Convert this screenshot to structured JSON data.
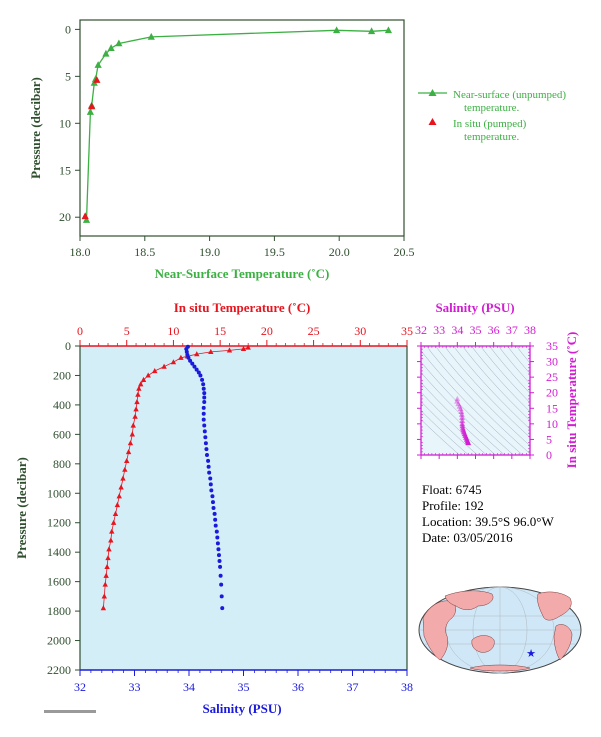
{
  "colors": {
    "near_surface": "#3cb043",
    "in_situ_red": "#e8141e",
    "salinity_blue": "#1a1adc",
    "magenta": "#d21ed2",
    "axis_dark": "#2f4f2f",
    "plot_bg": "#d4eef8",
    "land": "#f2aaaa",
    "ocean": "#cfe7f6"
  },
  "info": {
    "float": "Float:  6745",
    "profile": "Profile:  192",
    "location": "Location:  39.5°S  96.0°W",
    "date": "Date:  03/05/2016"
  },
  "chart_data": [
    {
      "type": "line",
      "xlabel": "Near-Surface Temperature (˚C)",
      "ylabel": "Pressure (decibar)",
      "xlim": [
        18.0,
        20.5
      ],
      "ylim": [
        22,
        -1
      ],
      "xticks": [
        "18.0",
        "18.5",
        "19.0",
        "19.5",
        "20.0",
        "20.5"
      ],
      "yticks": [
        "0",
        "5",
        "10",
        "15",
        "20"
      ],
      "legend": {
        "placement": "right"
      },
      "series": [
        {
          "name": "Near-surface (unpumped) temperature.",
          "color": "#3cb043",
          "points": [
            [
              20.38,
              0.1
            ],
            [
              20.25,
              0.2
            ],
            [
              19.98,
              0.1
            ],
            [
              18.55,
              0.8
            ],
            [
              18.3,
              1.5
            ],
            [
              18.24,
              2.0
            ],
            [
              18.2,
              2.6
            ],
            [
              18.14,
              3.8
            ],
            [
              18.12,
              5.3
            ],
            [
              18.11,
              5.7
            ],
            [
              18.09,
              8.1
            ],
            [
              18.08,
              8.8
            ],
            [
              18.05,
              20.3
            ]
          ]
        },
        {
          "name": "In situ (pumped) temperature.",
          "color": "#e8141e",
          "points": [
            [
              18.13,
              5.4
            ],
            [
              18.09,
              8.2
            ],
            [
              18.04,
              19.9
            ]
          ]
        }
      ]
    },
    {
      "type": "scatter",
      "x_top_label": "In situ Temperature (˚C)",
      "x_bottom_label": "Salinity (PSU)",
      "ylabel": "Pressure (decibar)",
      "top_lim": [
        0,
        35
      ],
      "top_ticks": [
        "0",
        "5",
        "10",
        "15",
        "20",
        "25",
        "30",
        "35"
      ],
      "bottom_lim": [
        32,
        38
      ],
      "bottom_ticks": [
        "32",
        "33",
        "34",
        "35",
        "36",
        "37",
        "38"
      ],
      "ylim": [
        2200,
        0
      ],
      "yticks": [
        "0",
        "200",
        "400",
        "600",
        "800",
        "1000",
        "1200",
        "1400",
        "1600",
        "1800",
        "2000",
        "2200"
      ],
      "series": [
        {
          "name": "In situ Temperature (˚C)",
          "color": "#e8141e",
          "points": [
            [
              18.0,
              10
            ],
            [
              17.5,
              20
            ],
            [
              16.0,
              30
            ],
            [
              14.0,
              40
            ],
            [
              12.5,
              55
            ],
            [
              11.5,
              70
            ],
            [
              10.8,
              80
            ],
            [
              10.0,
              110
            ],
            [
              9.0,
              140
            ],
            [
              8.0,
              170
            ],
            [
              7.3,
              200
            ],
            [
              6.8,
              230
            ],
            [
              6.5,
              260
            ],
            [
              6.3,
              290
            ],
            [
              6.2,
              330
            ],
            [
              6.1,
              380
            ],
            [
              6.0,
              430
            ],
            [
              5.9,
              480
            ],
            [
              5.7,
              540
            ],
            [
              5.6,
              600
            ],
            [
              5.4,
              660
            ],
            [
              5.2,
              720
            ],
            [
              5.0,
              780
            ],
            [
              4.8,
              840
            ],
            [
              4.6,
              900
            ],
            [
              4.4,
              960
            ],
            [
              4.2,
              1020
            ],
            [
              4.0,
              1080
            ],
            [
              3.8,
              1140
            ],
            [
              3.6,
              1200
            ],
            [
              3.4,
              1260
            ],
            [
              3.3,
              1320
            ],
            [
              3.1,
              1380
            ],
            [
              3.0,
              1440
            ],
            [
              2.9,
              1500
            ],
            [
              2.8,
              1560
            ],
            [
              2.7,
              1620
            ],
            [
              2.6,
              1700
            ],
            [
              2.5,
              1780
            ]
          ]
        },
        {
          "name": "Salinity (PSU)",
          "color": "#1a1adc",
          "points": [
            [
              33.98,
              5
            ],
            [
              33.95,
              20
            ],
            [
              33.96,
              40
            ],
            [
              33.97,
              60
            ],
            [
              33.99,
              80
            ],
            [
              34.02,
              100
            ],
            [
              34.06,
              120
            ],
            [
              34.1,
              140
            ],
            [
              34.14,
              160
            ],
            [
              34.18,
              180
            ],
            [
              34.21,
              200
            ],
            [
              34.24,
              230
            ],
            [
              34.26,
              260
            ],
            [
              34.27,
              290
            ],
            [
              34.28,
              320
            ],
            [
              34.28,
              350
            ],
            [
              34.28,
              380
            ],
            [
              34.27,
              420
            ],
            [
              34.27,
              460
            ],
            [
              34.27,
              500
            ],
            [
              34.28,
              540
            ],
            [
              34.29,
              580
            ],
            [
              34.3,
              620
            ],
            [
              34.31,
              660
            ],
            [
              34.32,
              700
            ],
            [
              34.33,
              740
            ],
            [
              34.35,
              780
            ],
            [
              34.36,
              820
            ],
            [
              34.37,
              860
            ],
            [
              34.39,
              900
            ],
            [
              34.4,
              940
            ],
            [
              34.41,
              980
            ],
            [
              34.43,
              1020
            ],
            [
              34.44,
              1060
            ],
            [
              34.45,
              1100
            ],
            [
              34.47,
              1140
            ],
            [
              34.48,
              1180
            ],
            [
              34.49,
              1220
            ],
            [
              34.51,
              1260
            ],
            [
              34.52,
              1300
            ],
            [
              34.53,
              1340
            ],
            [
              34.54,
              1380
            ],
            [
              34.55,
              1420
            ],
            [
              34.56,
              1460
            ],
            [
              34.57,
              1500
            ],
            [
              34.58,
              1560
            ],
            [
              34.59,
              1620
            ],
            [
              34.6,
              1700
            ],
            [
              34.61,
              1780
            ]
          ]
        }
      ]
    },
    {
      "type": "scatter",
      "title": "Salinity (PSU)",
      "ylabel": "In situ Temperature (˚C)",
      "xlim": [
        32,
        38
      ],
      "xticks": [
        "32",
        "33",
        "34",
        "35",
        "36",
        "37",
        "38"
      ],
      "ylim": [
        0,
        35
      ],
      "yticks": [
        "0",
        "5",
        "10",
        "15",
        "20",
        "25",
        "30",
        "35"
      ],
      "points": [
        [
          34.0,
          18
        ],
        [
          33.98,
          17.2
        ],
        [
          34.05,
          16.4
        ],
        [
          34.12,
          15.6
        ],
        [
          34.18,
          14.8
        ],
        [
          34.22,
          13.9
        ],
        [
          34.25,
          13.0
        ],
        [
          34.26,
          12.0
        ],
        [
          34.27,
          11.0
        ],
        [
          34.27,
          10.0
        ],
        [
          34.28,
          9.3
        ],
        [
          34.3,
          8.6
        ],
        [
          34.33,
          8.0
        ],
        [
          34.36,
          7.4
        ],
        [
          34.4,
          6.8
        ],
        [
          34.44,
          6.2
        ],
        [
          34.48,
          5.6
        ],
        [
          34.52,
          5.0
        ],
        [
          34.56,
          4.4
        ],
        [
          34.6,
          3.9
        ]
      ]
    }
  ]
}
